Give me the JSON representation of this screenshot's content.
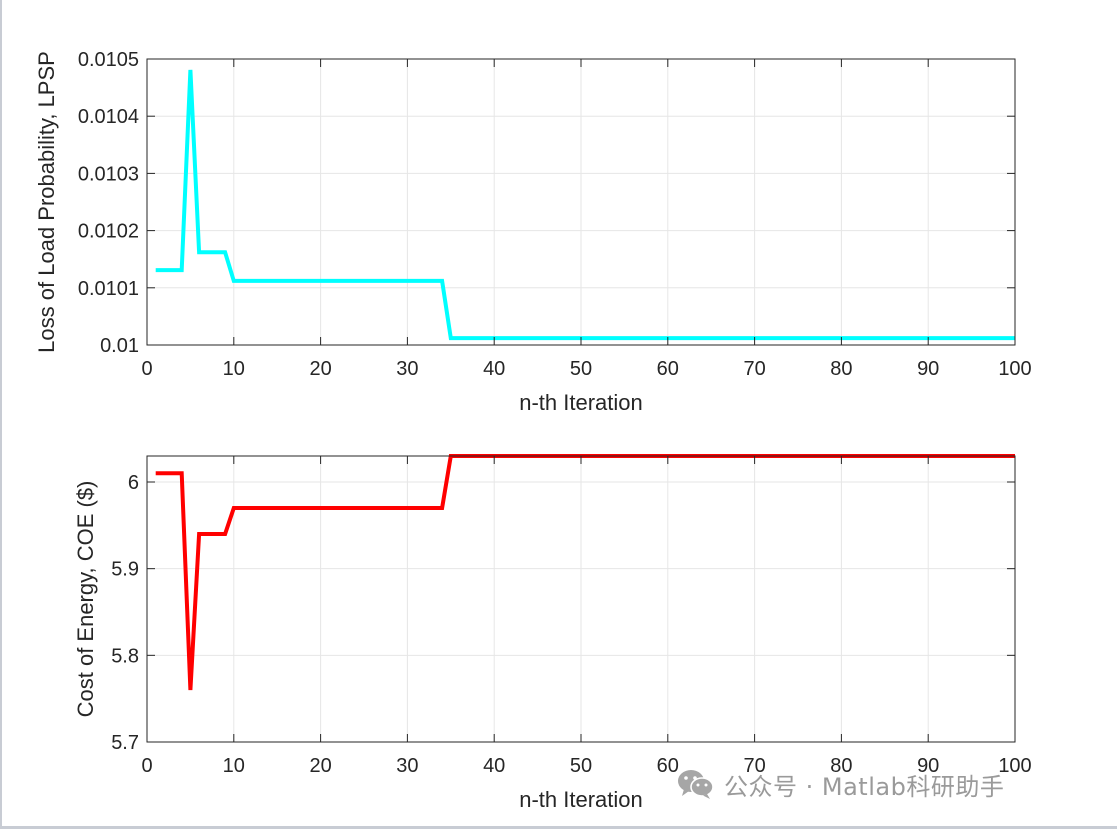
{
  "chart_data": [
    {
      "type": "line",
      "title": "",
      "xlabel": "n-th Iteration",
      "ylabel": "Loss of Load Probability, LPSP",
      "xlim": [
        0,
        100
      ],
      "ylim": [
        0.01,
        0.0105
      ],
      "xticks": [
        0,
        10,
        20,
        30,
        40,
        50,
        60,
        70,
        80,
        90,
        100
      ],
      "xtick_labels": [
        "0",
        "10",
        "20",
        "30",
        "40",
        "50",
        "60",
        "70",
        "80",
        "90",
        "100"
      ],
      "yticks": [
        0.01,
        0.0101,
        0.0102,
        0.0103,
        0.0104,
        0.0105
      ],
      "ytick_labels": [
        "0.01",
        "0.0101",
        "0.0102",
        "0.0103",
        "0.0104",
        "0.0105"
      ],
      "grid": true,
      "series": [
        {
          "color": "#00ffff",
          "x": [
            1,
            4,
            5,
            6,
            9,
            10,
            34,
            35,
            100
          ],
          "y": [
            0.010131,
            0.010131,
            0.010481,
            0.010162,
            0.010162,
            0.010112,
            0.010112,
            0.010012,
            0.010012
          ]
        }
      ]
    },
    {
      "type": "line",
      "title": "",
      "xlabel": "n-th Iteration",
      "ylabel": "Cost of Energy, COE ($)",
      "xlim": [
        0,
        100
      ],
      "ylim": [
        5.7,
        6.03
      ],
      "xticks": [
        0,
        10,
        20,
        30,
        40,
        50,
        60,
        70,
        80,
        90,
        100
      ],
      "xtick_labels": [
        "0",
        "10",
        "20",
        "30",
        "40",
        "50",
        "60",
        "70",
        "80",
        "90",
        "100"
      ],
      "yticks": [
        5.7,
        5.8,
        5.9,
        6.0
      ],
      "ytick_labels": [
        "5.7",
        "5.8",
        "5.9",
        "6"
      ],
      "grid": true,
      "series": [
        {
          "color": "#ff0000",
          "x": [
            1,
            4,
            5,
            6,
            9,
            10,
            34,
            35,
            100
          ],
          "y": [
            6.01,
            6.01,
            5.76,
            5.94,
            5.94,
            5.97,
            5.97,
            6.03,
            6.03
          ]
        }
      ]
    }
  ],
  "watermark": {
    "text": "公众号 · Matlab科研助手",
    "icon": "wechat-icon"
  }
}
